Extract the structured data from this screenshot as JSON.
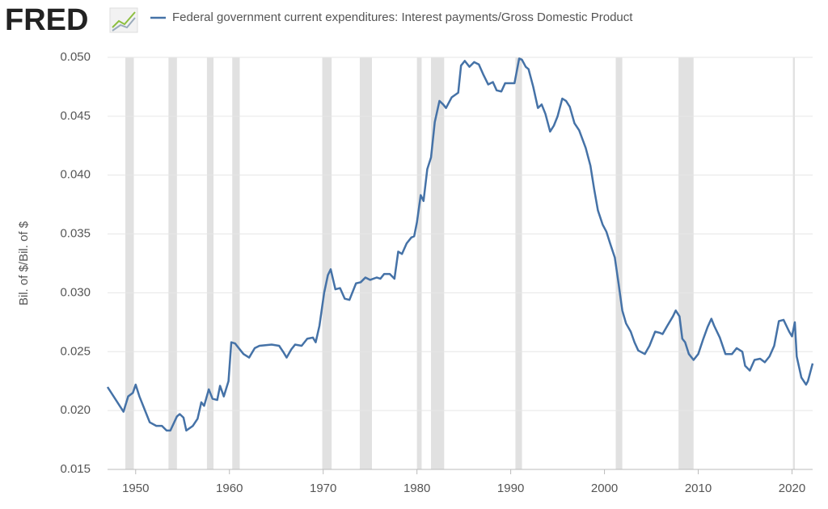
{
  "chart_data": {
    "type": "line",
    "logo": "FRED",
    "ylabel": "Bil. of $/Bil. of $",
    "x": [
      1947.0,
      1948.7,
      1949.2,
      1949.7,
      1950.0,
      1950.4,
      1951.0,
      1951.5,
      1952.2,
      1952.8,
      1953.3,
      1953.7,
      1954.4,
      1954.7,
      1955.1,
      1955.4,
      1956.1,
      1956.6,
      1957.0,
      1957.3,
      1957.8,
      1958.2,
      1958.7,
      1959.0,
      1959.4,
      1959.9,
      1960.2,
      1960.6,
      1961.0,
      1961.5,
      1962.1,
      1962.7,
      1963.2,
      1964.5,
      1965.3,
      1965.8,
      1966.1,
      1966.6,
      1967.0,
      1967.7,
      1968.3,
      1968.9,
      1969.2,
      1969.6,
      1970.1,
      1970.5,
      1970.8,
      1971.3,
      1971.8,
      1972.3,
      1972.8,
      1973.5,
      1974.0,
      1974.5,
      1975.0,
      1975.7,
      1976.1,
      1976.5,
      1977.1,
      1977.6,
      1978.0,
      1978.4,
      1978.9,
      1979.4,
      1979.7,
      1980.0,
      1980.4,
      1980.7,
      1981.1,
      1981.5,
      1981.9,
      1982.4,
      1982.8,
      1983.1,
      1983.7,
      1984.4,
      1984.7,
      1985.1,
      1985.6,
      1986.1,
      1986.6,
      1987.1,
      1987.6,
      1988.1,
      1988.5,
      1989.0,
      1989.4,
      1989.9,
      1990.4,
      1990.9,
      1991.2,
      1991.6,
      1991.9,
      1992.4,
      1992.9,
      1993.3,
      1993.7,
      1994.2,
      1994.6,
      1995.0,
      1995.5,
      1995.9,
      1996.3,
      1996.8,
      1997.3,
      1998.0,
      1998.5,
      1998.9,
      1999.3,
      1999.8,
      2000.2,
      2000.6,
      2001.1,
      2001.5,
      2001.9,
      2002.3,
      2002.8,
      2003.2,
      2003.6,
      2004.3,
      2004.8,
      2005.4,
      2005.9,
      2006.2,
      2006.7,
      2007.3,
      2007.6,
      2008.0,
      2008.3,
      2008.6,
      2009.0,
      2009.5,
      2010.0,
      2010.5,
      2011.0,
      2011.4,
      2011.7,
      2012.3,
      2012.9,
      2013.6,
      2014.1,
      2014.7,
      2015.0,
      2015.5,
      2016.0,
      2016.6,
      2017.1,
      2017.6,
      2018.1,
      2018.6,
      2019.1,
      2019.7,
      2020.0,
      2020.3,
      2020.5,
      2021.0,
      2021.5,
      2021.7,
      2022.2
    ],
    "series": [
      {
        "name": "Federal government current expenditures: Interest payments/Gross Domestic Product",
        "color": "#4572a7",
        "values": [
          0.022,
          0.0199,
          0.0212,
          0.0215,
          0.0222,
          0.0212,
          0.02,
          0.019,
          0.0187,
          0.0187,
          0.0183,
          0.0183,
          0.0195,
          0.0197,
          0.0194,
          0.0183,
          0.0187,
          0.0193,
          0.0207,
          0.0204,
          0.0218,
          0.021,
          0.0209,
          0.0221,
          0.0212,
          0.0225,
          0.0258,
          0.0257,
          0.0253,
          0.0248,
          0.0245,
          0.0253,
          0.0255,
          0.0256,
          0.0255,
          0.0249,
          0.0245,
          0.0252,
          0.0256,
          0.0255,
          0.0261,
          0.0262,
          0.0258,
          0.0272,
          0.03,
          0.0315,
          0.032,
          0.0303,
          0.0304,
          0.0295,
          0.0294,
          0.0308,
          0.0309,
          0.0313,
          0.0311,
          0.0313,
          0.0312,
          0.0316,
          0.0316,
          0.0312,
          0.0335,
          0.0333,
          0.0342,
          0.0347,
          0.0348,
          0.036,
          0.0383,
          0.0378,
          0.0405,
          0.0415,
          0.0445,
          0.0463,
          0.046,
          0.0457,
          0.0466,
          0.047,
          0.0493,
          0.0497,
          0.0492,
          0.0496,
          0.0494,
          0.0485,
          0.0477,
          0.0479,
          0.0472,
          0.0471,
          0.0478,
          0.0478,
          0.0478,
          0.0499,
          0.0498,
          0.0492,
          0.049,
          0.0475,
          0.0457,
          0.046,
          0.0452,
          0.0437,
          0.0442,
          0.045,
          0.0465,
          0.0463,
          0.0458,
          0.0444,
          0.0438,
          0.0423,
          0.0408,
          0.0388,
          0.037,
          0.0358,
          0.0352,
          0.0342,
          0.033,
          0.0308,
          0.0285,
          0.0274,
          0.0267,
          0.0258,
          0.0251,
          0.0248,
          0.0255,
          0.0267,
          0.0266,
          0.0265,
          0.0272,
          0.028,
          0.0285,
          0.028,
          0.0261,
          0.0258,
          0.0248,
          0.0243,
          0.0248,
          0.026,
          0.0271,
          0.0278,
          0.0272,
          0.0262,
          0.0248,
          0.0248,
          0.0253,
          0.025,
          0.0238,
          0.0234,
          0.0243,
          0.0244,
          0.0241,
          0.0246,
          0.0255,
          0.0276,
          0.0277,
          0.0267,
          0.0263,
          0.0275,
          0.0246,
          0.0228,
          0.0222,
          0.0225,
          0.024
        ]
      }
    ],
    "shaded_periods": [
      [
        1948.9,
        1949.8
      ],
      [
        1953.5,
        1954.4
      ],
      [
        1957.6,
        1958.3
      ],
      [
        1960.3,
        1961.1
      ],
      [
        1969.9,
        1970.9
      ],
      [
        1973.9,
        1975.2
      ],
      [
        1980.0,
        1980.5
      ],
      [
        1981.5,
        1982.9
      ],
      [
        1990.5,
        1991.2
      ],
      [
        2001.2,
        2001.9
      ],
      [
        2007.9,
        2009.5
      ],
      [
        2020.1,
        2020.3
      ]
    ],
    "shade_color": "#e1e1e1",
    "xlim": [
      1947.0,
      2022.2
    ],
    "ylim": [
      0.015,
      0.05
    ],
    "xticks": [
      1950,
      1960,
      1970,
      1980,
      1990,
      2000,
      2010,
      2020
    ],
    "yticks": [
      0.015,
      {
        "value": 0.02,
        "label": "0.020"
      },
      0.025,
      {
        "value": 0.03,
        "label": "0.030"
      },
      0.035,
      {
        "value": 0.04,
        "label": "0.040"
      },
      0.045,
      {
        "value": 0.05,
        "label": "0.050"
      }
    ],
    "grid": true
  }
}
